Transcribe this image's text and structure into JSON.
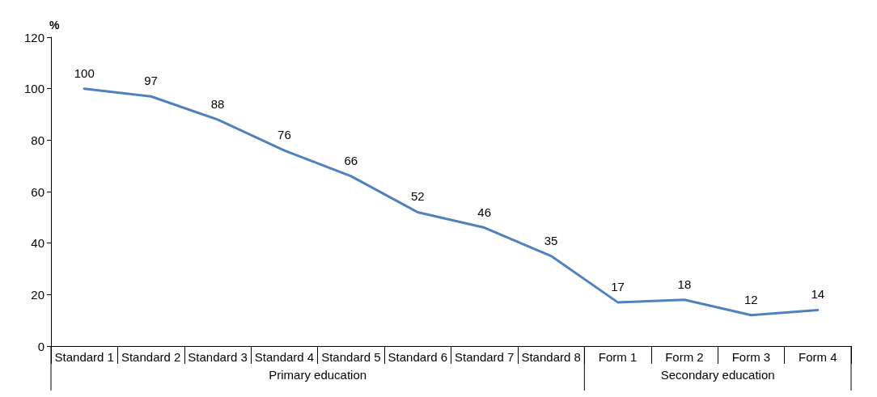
{
  "chart_data": {
    "type": "line",
    "ylabel": "%",
    "categories": [
      "Standard 1",
      "Standard 2",
      "Standard 3",
      "Standard 4",
      "Standard 5",
      "Standard 6",
      "Standard 7",
      "Standard 8",
      "Form 1",
      "Form 2",
      "Form 3",
      "Form 4"
    ],
    "series": [
      {
        "color": "#4f81bd",
        "values": [
          100,
          97,
          88,
          76,
          66,
          52,
          46,
          35,
          17,
          18,
          12,
          14
        ]
      }
    ],
    "ylim": [
      0,
      120
    ],
    "yticks": [
      0,
      20,
      40,
      60,
      80,
      100,
      120
    ],
    "data_labels": true,
    "marker": "none",
    "line_style": "solid",
    "grid": false,
    "annotations": [
      "Primary education",
      "Secondary education"
    ]
  }
}
